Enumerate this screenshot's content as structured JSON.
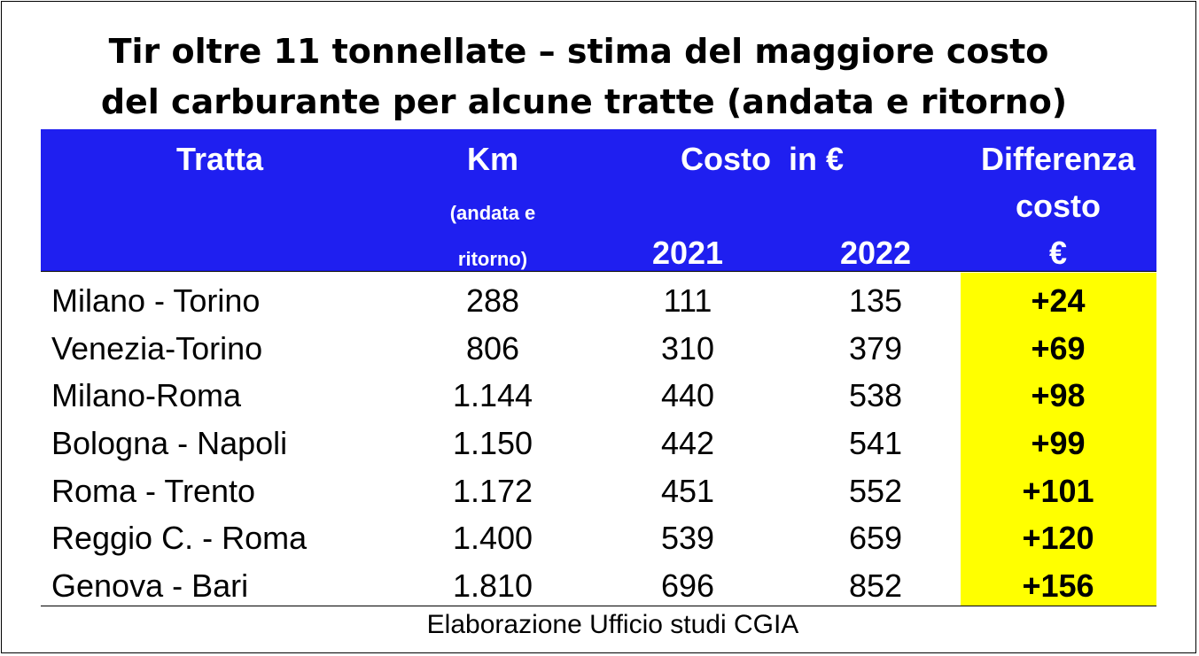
{
  "title": {
    "line1": "Tir oltre 11 tonnellate – stima del maggiore costo",
    "line2": "del carburante per alcune tratte (andata e ritorno)"
  },
  "header": {
    "tratta": "Tratta",
    "km": "Km",
    "km_note_1": "(andata e",
    "km_note_2": "ritorno)",
    "costo": "Costo  in €",
    "year_2021": "2021",
    "year_2022": "2022",
    "diff_1": "Differenza",
    "diff_2": "costo",
    "diff_3": "€"
  },
  "rows": [
    {
      "route": "Milano - Torino",
      "km": "288",
      "y2021": "111",
      "y2022": "135",
      "diff": "+24"
    },
    {
      "route": "Venezia-Torino",
      "km": "806",
      "y2021": "310",
      "y2022": "379",
      "diff": "+69"
    },
    {
      "route": "Milano-Roma",
      "km": "1.144",
      "y2021": "440",
      "y2022": "538",
      "diff": "+98"
    },
    {
      "route": "Bologna - Napoli",
      "km": "1.150",
      "y2021": "442",
      "y2022": "541",
      "diff": "+99"
    },
    {
      "route": "Roma - Trento",
      "km": "1.172",
      "y2021": "451",
      "y2022": "552",
      "diff": "+101"
    },
    {
      "route": "Reggio C. - Roma",
      "km": "1.400",
      "y2021": "539",
      "y2022": "659",
      "diff": "+120"
    },
    {
      "route": "Genova - Bari",
      "km": "1.810",
      "y2021": "696",
      "y2022": "852",
      "diff": "+156"
    }
  ],
  "source": "Elaborazione Ufficio studi CGIA",
  "colors": {
    "header_bg": "#1f1ff0",
    "highlight": "#ffff00"
  }
}
